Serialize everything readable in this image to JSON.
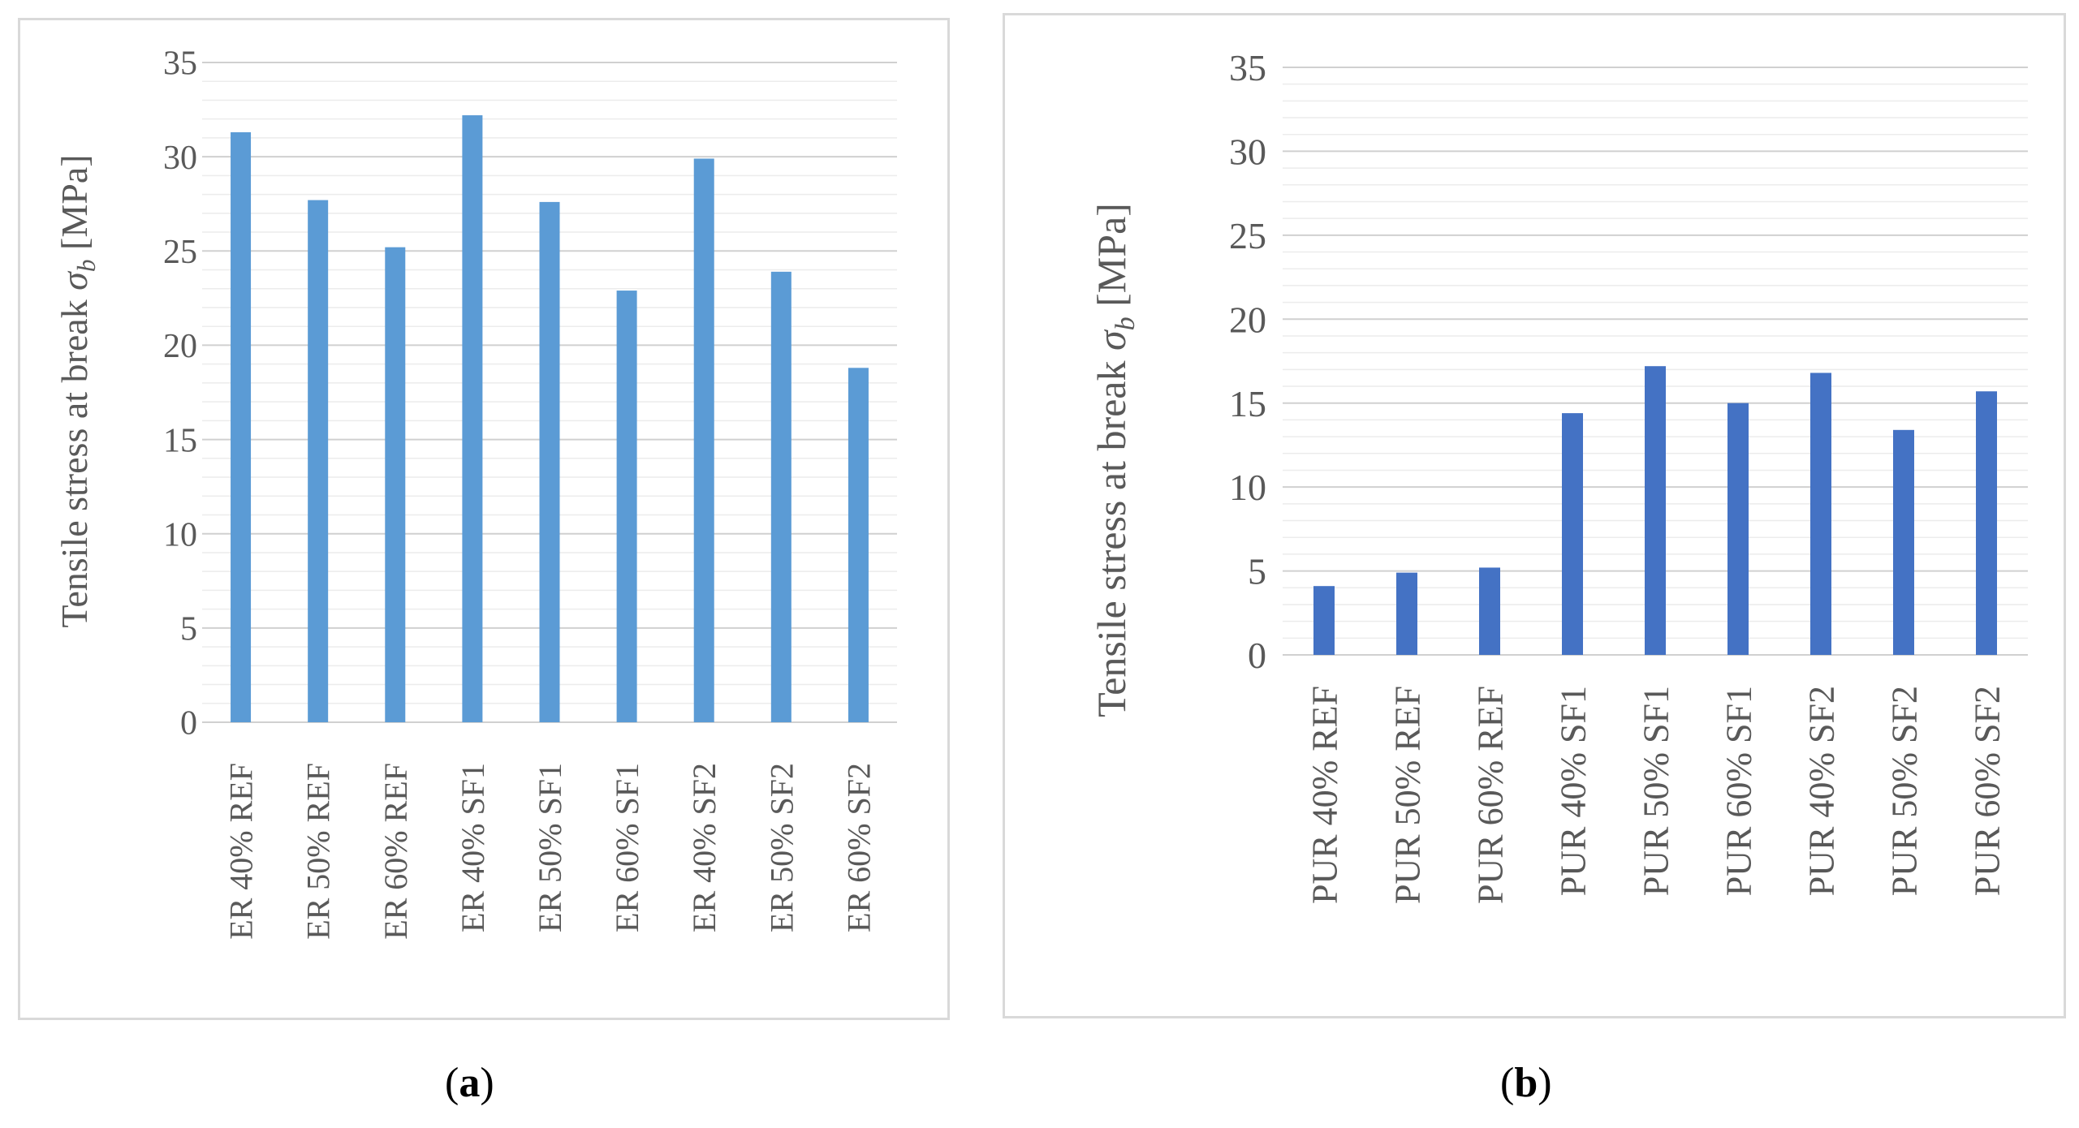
{
  "chart_data": [
    {
      "type": "bar",
      "panel": "a",
      "caption": "a",
      "title": "",
      "xlabel": "",
      "ylabel": "Tensile stress at break σ_b [MPa]",
      "ylabel_main": "Tensile stress at break ",
      "ylabel_symbol": "σ",
      "ylabel_subscript": "b",
      "ylabel_unit": " [MPa]",
      "ylim": [
        0,
        35
      ],
      "yticks": [
        "0",
        "5",
        "10",
        "15",
        "20",
        "25",
        "30",
        "35"
      ],
      "grid": true,
      "bar_color": "#5b9bd5",
      "categories": [
        "ER 40% REF",
        "ER 50% REF",
        "ER 60% REF",
        "ER 40% SF1",
        "ER 50% SF1",
        "ER 60% SF1",
        "ER 40% SF2",
        "ER 50% SF2",
        "ER 60% SF2"
      ],
      "values": [
        31.3,
        27.7,
        25.2,
        32.2,
        27.6,
        22.9,
        29.9,
        23.9,
        18.8
      ]
    },
    {
      "type": "bar",
      "panel": "b",
      "caption": "b",
      "title": "",
      "xlabel": "",
      "ylabel": "Tensile stress at break σ_b [MPa]",
      "ylabel_main": "Tensile stress at break  ",
      "ylabel_symbol": "σ",
      "ylabel_subscript": "b",
      "ylabel_unit": " [MPa]",
      "ylim": [
        0,
        35
      ],
      "yticks": [
        "0",
        "5",
        "10",
        "15",
        "20",
        "25",
        "30",
        "35"
      ],
      "grid": true,
      "bar_color": "#4472c4",
      "categories": [
        "PUR 40% REF",
        "PUR 50% REF",
        "PUR 60% REF",
        "PUR 40% SF1",
        "PUR 50% SF1",
        "PUR 60% SF1",
        "PUR 40% SF2",
        "PUR 50% SF2",
        "PUR 60% SF2"
      ],
      "values": [
        4.1,
        4.9,
        5.2,
        14.4,
        17.2,
        15.0,
        16.8,
        13.4,
        15.7
      ]
    }
  ]
}
